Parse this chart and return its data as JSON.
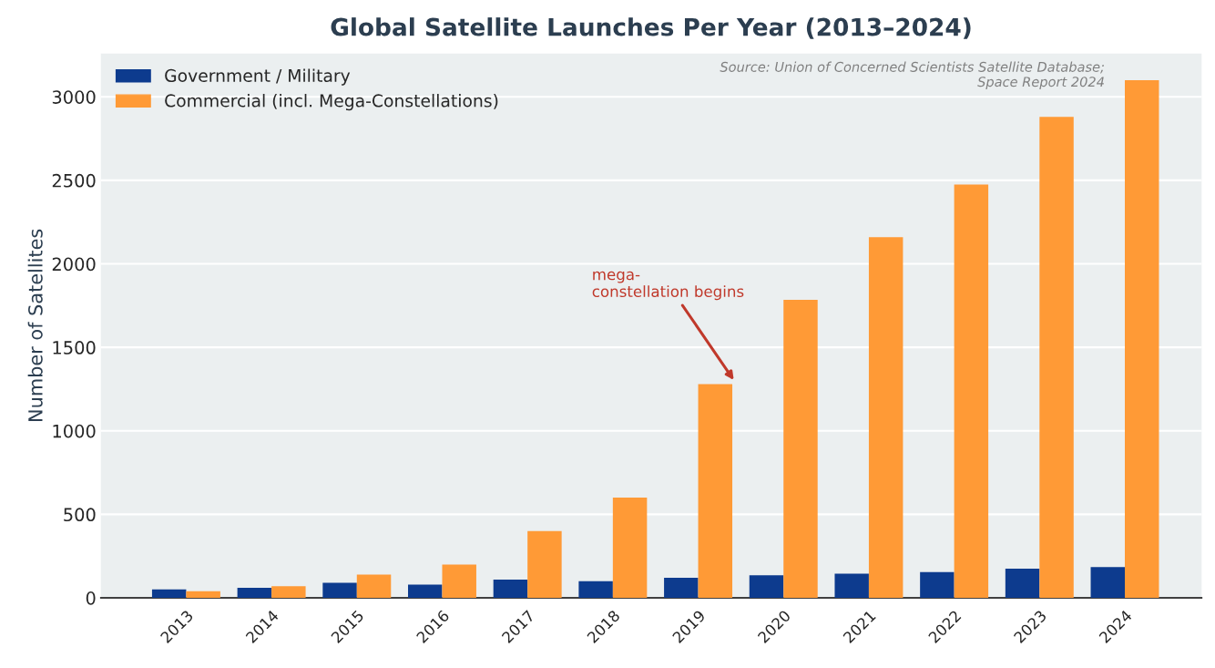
{
  "chart_data": {
    "type": "bar",
    "title": "Global Satellite Launches Per Year (2013–2024)",
    "ylabel": "Number of Satellites",
    "categories": [
      "2013",
      "2014",
      "2015",
      "2016",
      "2017",
      "2018",
      "2019",
      "2020",
      "2021",
      "2022",
      "2023",
      "2024"
    ],
    "series": [
      {
        "name": "Government / Military",
        "color": "#0d3b8e",
        "values": [
          50,
          60,
          90,
          80,
          110,
          100,
          120,
          135,
          145,
          155,
          175,
          185
        ]
      },
      {
        "name": "Commercial (incl. Mega-Constellations)",
        "color": "#ff9a36",
        "values": [
          40,
          70,
          140,
          200,
          400,
          600,
          1280,
          1785,
          2160,
          2475,
          2880,
          3100
        ]
      }
    ],
    "ylim": [
      0,
      3260
    ],
    "yticks": [
      0,
      500,
      1000,
      1500,
      2000,
      2500,
      3000
    ],
    "grid": "y",
    "legend": "top left",
    "annotations": [
      "mega-\nconstellation begins",
      "Source: Union of Concerned Scientists Satellite Database;\nSpace Report 2024"
    ]
  }
}
